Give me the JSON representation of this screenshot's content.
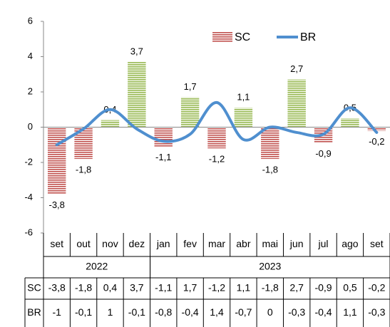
{
  "chart_data": {
    "type": "bar_line",
    "categories": [
      "set",
      "out",
      "nov",
      "dez",
      "jan",
      "fev",
      "mar",
      "abr",
      "mai",
      "jun",
      "jul",
      "ago",
      "set"
    ],
    "year_groups": [
      {
        "label": "2022",
        "span": 4
      },
      {
        "label": "2023",
        "span": 9
      }
    ],
    "series": [
      {
        "name": "SC",
        "type": "bar",
        "color": "#c0504d",
        "positive_color": "#9bbb59",
        "values": [
          -3.8,
          -1.8,
          0.4,
          3.7,
          -1.1,
          1.7,
          -1.2,
          1.1,
          -1.8,
          2.7,
          -0.9,
          0.5,
          -0.2
        ],
        "value_labels": [
          "-3,8",
          "-1,8",
          "0,4",
          "3,7",
          "-1,1",
          "1,7",
          "-1,2",
          "1,1",
          "-1,8",
          "2,7",
          "-0,9",
          "0,5",
          "-0,2"
        ]
      },
      {
        "name": "BR",
        "type": "line",
        "color": "#4f8fcf",
        "values": [
          -1,
          -0.1,
          1,
          -0.1,
          -0.8,
          -0.4,
          1.4,
          -0.7,
          0,
          -0.3,
          -0.4,
          1.1,
          -0.3
        ],
        "value_labels": [
          "-1",
          "-0,1",
          "1",
          "-0,1",
          "-0,8",
          "-0,4",
          "1,4",
          "-0,7",
          "0",
          "-0,3",
          "-0,4",
          "1,1",
          "-0,3"
        ]
      }
    ],
    "ylim": [
      -6,
      6
    ],
    "yticks": [
      -6,
      -4,
      -2,
      0,
      2,
      4,
      6
    ],
    "grid": false
  }
}
